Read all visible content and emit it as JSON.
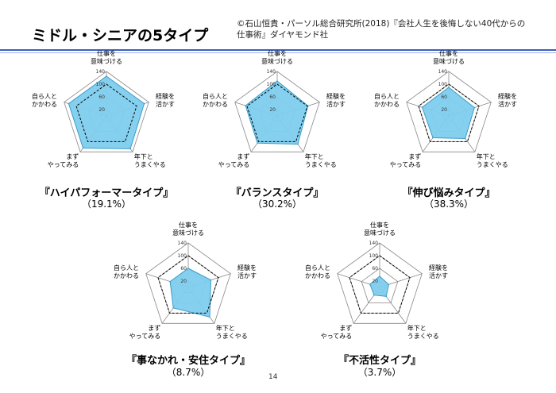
{
  "header": {
    "title": "ミドル・シニアの5タイプ",
    "source_line1": "©石山恒貴・パーソル総合研究所(2018)『会社人生を後悔しない40代からの",
    "source_line2": "仕事術』ダイヤモンド社"
  },
  "page_number": "14",
  "colors": {
    "fill": "#7fcdee",
    "stroke": "#3a9cc8",
    "grid": "#888888",
    "average": "#000000",
    "rule": "#3b5fbd"
  },
  "chart_data": [
    {
      "type": "radar",
      "name": "『ハイパフォーマータイプ』",
      "share": "（19.1%）",
      "axes": [
        [
          "仕事を",
          "意味づける"
        ],
        [
          "経験を",
          "活かす"
        ],
        [
          "年下と",
          "うまくやる"
        ],
        [
          "まず",
          "やってみる"
        ],
        [
          "自ら人と",
          "かかわる"
        ]
      ],
      "ticks": [
        "20",
        "60",
        "100",
        "140"
      ],
      "range": [
        0,
        140
      ],
      "values": [
        125,
        125,
        128,
        125,
        125
      ],
      "average": [
        100,
        100,
        100,
        100,
        100
      ]
    },
    {
      "type": "radar",
      "name": "『バランスタイプ』",
      "share": "（30.2%）",
      "axes": [
        [
          "仕事を",
          "意味づける"
        ],
        [
          "経験を",
          "活かす"
        ],
        [
          "年下と",
          "うまくやる"
        ],
        [
          "まず",
          "やってみる"
        ],
        [
          "自ら人と",
          "かかわる"
        ]
      ],
      "ticks": [
        "20",
        "60",
        "100",
        "140"
      ],
      "range": [
        0,
        140
      ],
      "values": [
        110,
        102,
        110,
        106,
        105
      ],
      "average": [
        100,
        100,
        100,
        100,
        100
      ]
    },
    {
      "type": "radar",
      "name": "『伸び悩みタイプ』",
      "share": "（38.3%）",
      "axes": [
        [
          "仕事を",
          "意味づける"
        ],
        [
          "経験を",
          "活かす"
        ],
        [
          "年下と",
          "うまくやる"
        ],
        [
          "まず",
          "やってみる"
        ],
        [
          "自ら人と",
          "かかわる"
        ]
      ],
      "ticks": [
        "20",
        "60",
        "100",
        "140"
      ],
      "range": [
        0,
        140
      ],
      "values": [
        90,
        85,
        88,
        85,
        88
      ],
      "average": [
        100,
        100,
        100,
        100,
        100
      ]
    },
    {
      "type": "radar",
      "name": "『事なかれ・安住タイプ』",
      "share": "（8.7%）",
      "axes": [
        [
          "仕事を",
          "意味づける"
        ],
        [
          "経験を",
          "活かす"
        ],
        [
          "年下と",
          "うまくやる"
        ],
        [
          "まず",
          "やってみる"
        ],
        [
          "自ら人と",
          "かかわる"
        ]
      ],
      "ticks": [
        "20",
        "60",
        "100",
        "140"
      ],
      "range": [
        0,
        140
      ],
      "values": [
        60,
        75,
        115,
        80,
        60
      ],
      "average": [
        100,
        100,
        100,
        100,
        100
      ]
    },
    {
      "type": "radar",
      "name": "『不活性タイプ』",
      "share": "（3.7%）",
      "axes": [
        [
          "仕事を",
          "意味づける"
        ],
        [
          "経験を",
          "活かす"
        ],
        [
          "年下と",
          "うまくやる"
        ],
        [
          "まず",
          "やってみる"
        ],
        [
          "自ら人と",
          "かかわる"
        ]
      ],
      "ticks": [
        "20",
        "60",
        "100",
        "140"
      ],
      "range": [
        0,
        140
      ],
      "values": [
        35,
        30,
        35,
        30,
        32
      ],
      "average": [
        100,
        100,
        100,
        100,
        100
      ]
    }
  ]
}
